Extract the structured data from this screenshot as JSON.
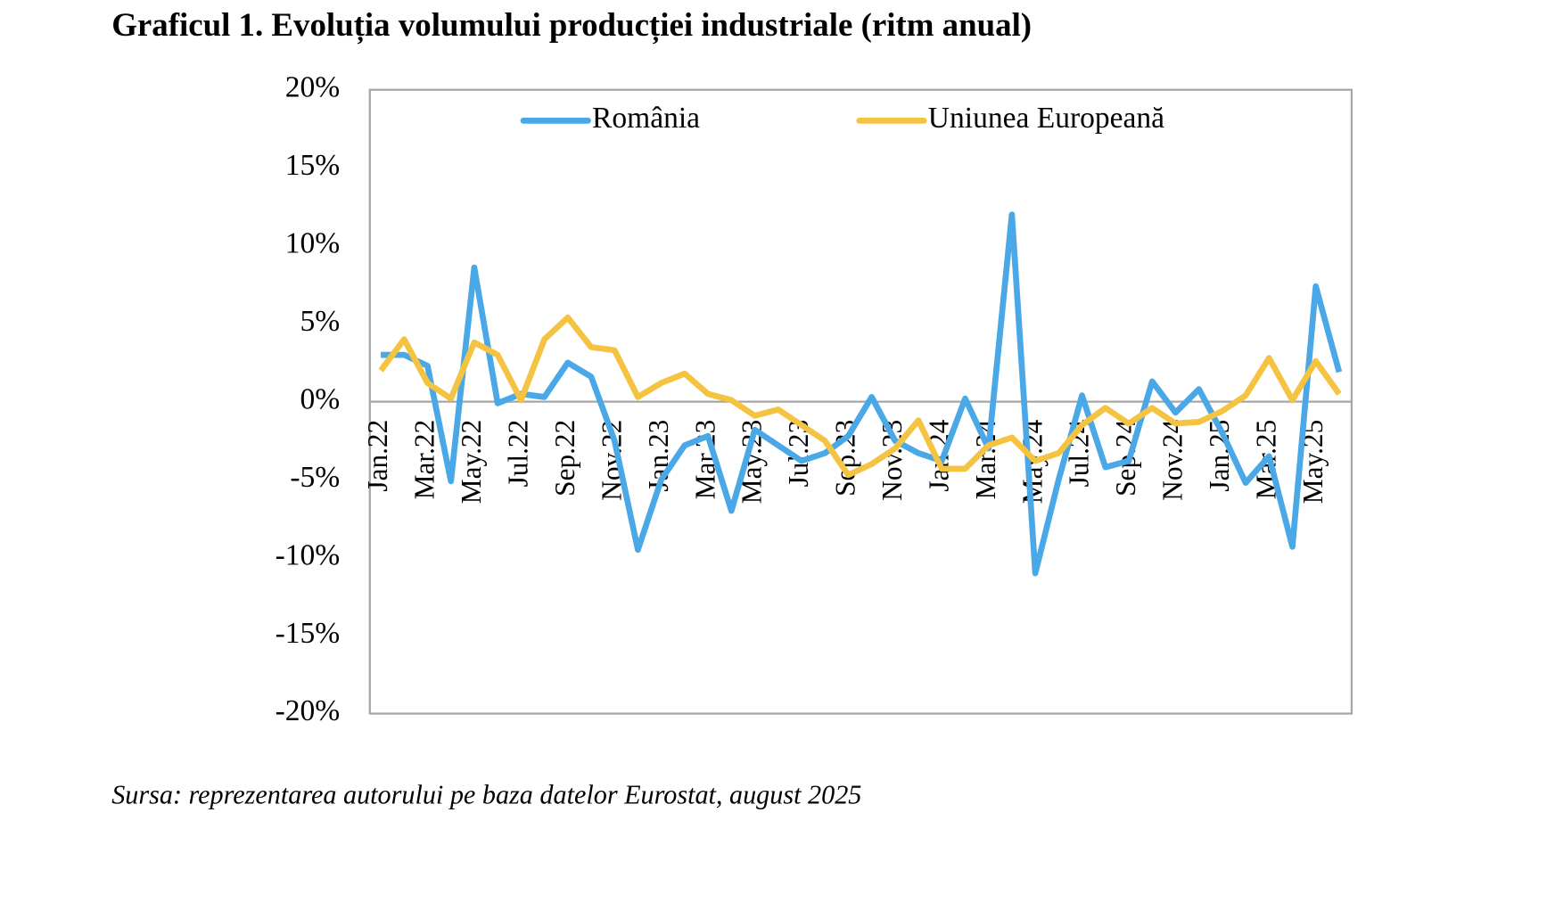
{
  "chart_data": {
    "type": "line",
    "title": "Graficul 1. Evoluția volumului producției industriale (ritm anual)",
    "source": "Sursa: reprezentarea autorului pe baza datelor Eurostat, august 2025",
    "categories": [
      "Jan.22",
      null,
      "Mar.22",
      null,
      "May.22",
      null,
      "Jul.22",
      null,
      "Sep.22",
      null,
      "Nov.22",
      null,
      "Jan.23",
      null,
      "Mar.23",
      null,
      "May.23",
      null,
      "Jul.23",
      null,
      "Sep.23",
      null,
      "Nov.23",
      null,
      "Jan.24",
      null,
      "Mar.24",
      null,
      "May.24",
      null,
      "Jul.24",
      null,
      "Sep.24",
      null,
      "Nov.24",
      null,
      "Jan.25",
      null,
      "Mar.25",
      null,
      "May.25",
      null
    ],
    "series": [
      {
        "name": "România",
        "color": "#4aa8e6",
        "values": [
          3.0,
          3.0,
          2.3,
          -5.1,
          8.6,
          -0.1,
          0.5,
          0.3,
          2.5,
          1.6,
          -2.5,
          -9.5,
          -5.0,
          -2.8,
          -2.2,
          -7.0,
          -1.8,
          -2.8,
          -3.8,
          -3.3,
          -2.2,
          0.3,
          -2.5,
          -3.3,
          -3.8,
          0.2,
          -3.0,
          12.0,
          -11.0,
          -5.0,
          0.4,
          -4.2,
          -3.8,
          1.3,
          -0.7,
          0.8,
          -2.0,
          -5.2,
          -3.5,
          -9.3,
          7.4,
          1.9
        ]
      },
      {
        "name": "Uniunea Europeană",
        "color": "#f5c342",
        "values": [
          2.0,
          4.0,
          1.2,
          0.2,
          3.8,
          3.0,
          0.1,
          4.0,
          5.4,
          3.5,
          3.3,
          0.3,
          1.2,
          1.8,
          0.5,
          0.1,
          -0.9,
          -0.5,
          -1.5,
          -2.5,
          -4.7,
          -4.0,
          -3.0,
          -1.2,
          -4.3,
          -4.3,
          -2.8,
          -2.3,
          -3.8,
          -3.3,
          -1.5,
          -0.4,
          -1.4,
          -0.4,
          -1.4,
          -1.3,
          -0.6,
          0.4,
          2.8,
          0.1,
          2.6,
          0.5
        ]
      }
    ],
    "ylim": [
      -20,
      20
    ],
    "yticks": [
      {
        "value": -20,
        "label": "-20%"
      },
      {
        "value": -15,
        "label": "-15%"
      },
      {
        "value": -10,
        "label": "-10%"
      },
      {
        "value": -5,
        "label": "-5%"
      },
      {
        "value": 0,
        "label": "0%"
      },
      {
        "value": 5,
        "label": "5%"
      },
      {
        "value": 10,
        "label": "10%"
      },
      {
        "value": 15,
        "label": "15%"
      },
      {
        "value": 20,
        "label": "20%"
      }
    ],
    "legend": "top",
    "grid": false
  }
}
